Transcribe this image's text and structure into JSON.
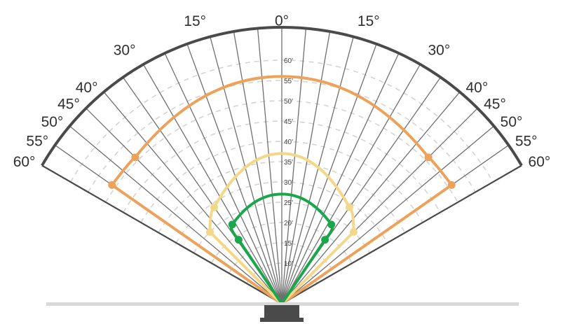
{
  "chart_data": {
    "type": "polar-coverage",
    "colors": {
      "frame": "#4a4a4a",
      "spoke": "#6f6f6f",
      "grid_ring": "#d4d4d4",
      "baseline": "#d9d9d9",
      "sensor": "#4a4a4a",
      "series_1": "#eda25b",
      "series_2": "#f4d88a",
      "series_3": "#1aa64a"
    },
    "angle_ticks": [
      {
        "value": -60,
        "label": "60°"
      },
      {
        "value": -55,
        "label": "55°"
      },
      {
        "value": -50,
        "label": "50°"
      },
      {
        "value": -45,
        "label": "45°"
      },
      {
        "value": -40,
        "label": "40°"
      },
      {
        "value": -30,
        "label": "30°"
      },
      {
        "value": -15,
        "label": "15°"
      },
      {
        "value": 0,
        "label": "0°"
      },
      {
        "value": 15,
        "label": "15°"
      },
      {
        "value": 30,
        "label": "30°"
      },
      {
        "value": 40,
        "label": "40°"
      },
      {
        "value": 45,
        "label": "45°"
      },
      {
        "value": 50,
        "label": "50°"
      },
      {
        "value": 55,
        "label": "55°"
      },
      {
        "value": 60,
        "label": "60°"
      }
    ],
    "distance_ticks": [
      {
        "value": 10,
        "label": "10'"
      },
      {
        "value": 15,
        "label": "15'"
      },
      {
        "value": 20,
        "label": "20'"
      },
      {
        "value": 25,
        "label": "25'"
      },
      {
        "value": 30,
        "label": "30'"
      },
      {
        "value": 35,
        "label": "35'"
      },
      {
        "value": 40,
        "label": "40'"
      },
      {
        "value": 45,
        "label": "45'"
      },
      {
        "value": 50,
        "label": "50'"
      },
      {
        "value": 55,
        "label": "55'"
      },
      {
        "value": 60,
        "label": "60'"
      }
    ],
    "angle_range": [
      -60,
      60
    ],
    "distance_max": 60,
    "series": [
      {
        "color_key": "series_1",
        "points": [
          [
            -55,
            51
          ],
          [
            -45,
            51
          ],
          [
            0,
            56
          ],
          [
            45,
            51
          ],
          [
            55,
            51
          ]
        ],
        "markers": [
          [
            -55,
            51
          ],
          [
            -45,
            51
          ],
          [
            45,
            51
          ],
          [
            55,
            51
          ]
        ]
      },
      {
        "color_key": "series_2",
        "points": [
          [
            -45,
            25
          ],
          [
            -35,
            29
          ],
          [
            0,
            37
          ],
          [
            35,
            29
          ],
          [
            45,
            25
          ]
        ],
        "markers": [
          [
            -45,
            25
          ],
          [
            -35,
            29
          ],
          [
            35,
            29
          ],
          [
            45,
            25
          ]
        ]
      },
      {
        "color_key": "series_3",
        "points": [
          [
            -34,
            19
          ],
          [
            -32,
            23
          ],
          [
            0,
            27
          ],
          [
            32,
            23
          ],
          [
            34,
            19
          ]
        ],
        "markers": [
          [
            -34,
            19
          ],
          [
            -32,
            23
          ],
          [
            32,
            23
          ],
          [
            34,
            19
          ]
        ]
      }
    ]
  }
}
